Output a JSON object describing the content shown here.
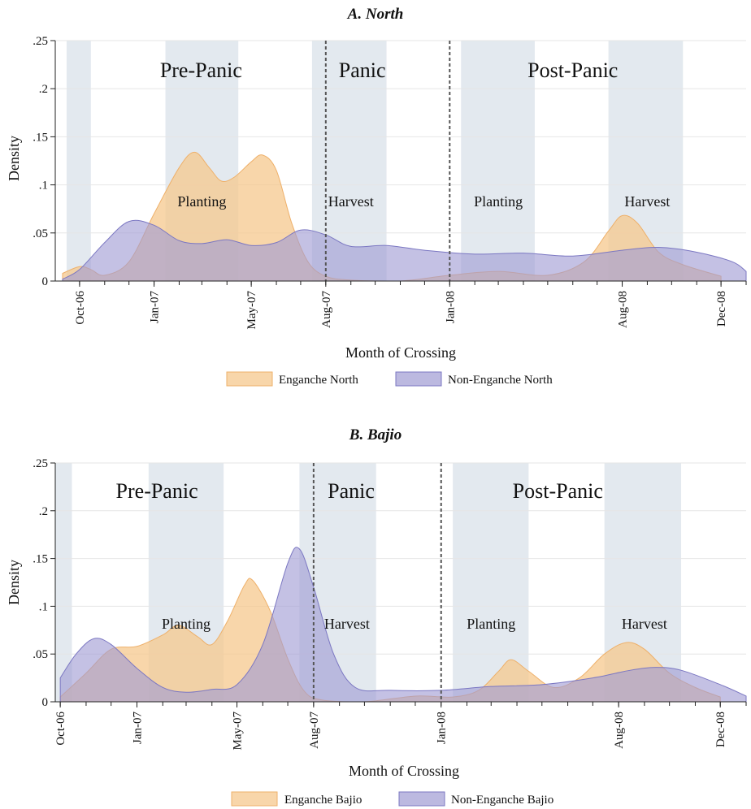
{
  "colors": {
    "enganche_fill": "#f6c88e",
    "enganche_stroke": "#eeb06a",
    "non_enganche_fill": "#9f9bd3",
    "non_enganche_stroke": "#7b77c2",
    "shade": "#d9e2ea",
    "grid": "#e6e6e6"
  },
  "chart_data": [
    {
      "type": "area",
      "title": "A. North",
      "xlabel": "Month of Crossing",
      "ylabel": "Density",
      "xlim": [
        "2006-09-01",
        "2009-01-01"
      ],
      "ylim": [
        0,
        0.25
      ],
      "y_ticks": [
        {
          "value": 0,
          "label": "0"
        },
        {
          "value": 0.05,
          "label": ".05"
        },
        {
          "value": 0.1,
          "label": ".1"
        },
        {
          "value": 0.15,
          "label": ".15"
        },
        {
          "value": 0.2,
          "label": ".2"
        },
        {
          "value": 0.25,
          "label": ".25"
        }
      ],
      "x_ticks": [
        {
          "date": "2006-10-01",
          "label": "Oct-06"
        },
        {
          "date": "2007-01-01",
          "label": "Jan-07"
        },
        {
          "date": "2007-05-01",
          "label": "May-07"
        },
        {
          "date": "2007-08-01",
          "label": "Aug-07"
        },
        {
          "date": "2008-01-01",
          "label": "Jan-08"
        },
        {
          "date": "2008-08-01",
          "label": "Aug-08"
        },
        {
          "date": "2008-12-01",
          "label": "Dec-08"
        }
      ],
      "shaded_bands": [
        {
          "start": "2006-09-15",
          "end": "2006-10-15"
        },
        {
          "start": "2007-01-15",
          "end": "2007-04-15"
        },
        {
          "start": "2007-07-15",
          "end": "2007-10-15"
        },
        {
          "start": "2008-01-15",
          "end": "2008-04-15"
        },
        {
          "start": "2008-07-15",
          "end": "2008-10-15"
        }
      ],
      "vlines": [
        "2007-08-01",
        "2008-01-01"
      ],
      "phase_labels": [
        {
          "text": "Pre-Panic",
          "date": "2007-02-28"
        },
        {
          "text": "Panic",
          "date": "2007-09-15"
        },
        {
          "text": "Post-Panic",
          "date": "2008-06-01"
        }
      ],
      "season_labels": [
        {
          "text": "Planting",
          "date": "2007-03-01"
        },
        {
          "text": "Harvest",
          "date": "2007-09-01"
        },
        {
          "text": "Planting",
          "date": "2008-03-01"
        },
        {
          "text": "Harvest",
          "date": "2008-09-01"
        }
      ],
      "series": [
        {
          "name": "Enganche North",
          "color_key": "enganche",
          "points": [
            [
              "2006-09-10",
              0.008
            ],
            [
              "2006-10-01",
              0.015
            ],
            [
              "2006-10-15",
              0.012
            ],
            [
              "2006-11-01",
              0.006
            ],
            [
              "2006-12-01",
              0.02
            ],
            [
              "2007-01-01",
              0.07
            ],
            [
              "2007-02-01",
              0.118
            ],
            [
              "2007-02-20",
              0.134
            ],
            [
              "2007-03-10",
              0.118
            ],
            [
              "2007-03-25",
              0.104
            ],
            [
              "2007-04-10",
              0.108
            ],
            [
              "2007-05-01",
              0.124
            ],
            [
              "2007-05-15",
              0.131
            ],
            [
              "2007-06-01",
              0.115
            ],
            [
              "2007-06-20",
              0.06
            ],
            [
              "2007-07-10",
              0.02
            ],
            [
              "2007-08-01",
              0.005
            ],
            [
              "2007-09-01",
              0.001
            ],
            [
              "2007-11-01",
              0.0
            ],
            [
              "2008-01-01",
              0.006
            ],
            [
              "2008-03-01",
              0.01
            ],
            [
              "2008-05-01",
              0.006
            ],
            [
              "2008-06-15",
              0.02
            ],
            [
              "2008-07-15",
              0.052
            ],
            [
              "2008-08-01",
              0.068
            ],
            [
              "2008-08-20",
              0.06
            ],
            [
              "2008-09-15",
              0.03
            ],
            [
              "2008-10-15",
              0.017
            ],
            [
              "2008-12-01",
              0.005
            ]
          ]
        },
        {
          "name": "Non-Enganche North",
          "color_key": "non_enganche",
          "points": [
            [
              "2006-09-10",
              0.002
            ],
            [
              "2006-10-01",
              0.012
            ],
            [
              "2006-11-01",
              0.04
            ],
            [
              "2006-12-01",
              0.062
            ],
            [
              "2007-01-01",
              0.058
            ],
            [
              "2007-02-01",
              0.042
            ],
            [
              "2007-03-01",
              0.039
            ],
            [
              "2007-04-01",
              0.043
            ],
            [
              "2007-05-01",
              0.037
            ],
            [
              "2007-06-01",
              0.04
            ],
            [
              "2007-07-01",
              0.053
            ],
            [
              "2007-08-01",
              0.048
            ],
            [
              "2007-09-01",
              0.036
            ],
            [
              "2007-10-15",
              0.037
            ],
            [
              "2007-12-01",
              0.032
            ],
            [
              "2008-02-01",
              0.028
            ],
            [
              "2008-04-01",
              0.029
            ],
            [
              "2008-06-01",
              0.026
            ],
            [
              "2008-08-01",
              0.032
            ],
            [
              "2008-09-15",
              0.035
            ],
            [
              "2008-11-01",
              0.03
            ],
            [
              "2008-12-15",
              0.02
            ],
            [
              "2009-01-01",
              0.01
            ]
          ]
        }
      ],
      "legend": {
        "placement": "bottom",
        "items": [
          "Enganche North",
          "Non-Enganche North"
        ]
      }
    },
    {
      "type": "area",
      "title": "B. Bajio",
      "xlabel": "Month of Crossing",
      "ylabel": "Density",
      "xlim": [
        "2006-09-25",
        "2009-01-01"
      ],
      "ylim": [
        0,
        0.25
      ],
      "y_ticks": [
        {
          "value": 0,
          "label": "0"
        },
        {
          "value": 0.05,
          "label": ".05"
        },
        {
          "value": 0.1,
          "label": ".1"
        },
        {
          "value": 0.15,
          "label": ".15"
        },
        {
          "value": 0.2,
          "label": ".2"
        },
        {
          "value": 0.25,
          "label": ".25"
        }
      ],
      "x_ticks": [
        {
          "date": "2006-10-01",
          "label": "Oct-06"
        },
        {
          "date": "2007-01-01",
          "label": "Jan-07"
        },
        {
          "date": "2007-05-01",
          "label": "May-07"
        },
        {
          "date": "2007-08-01",
          "label": "Aug-07"
        },
        {
          "date": "2008-01-01",
          "label": "Jan-08"
        },
        {
          "date": "2008-08-01",
          "label": "Aug-08"
        },
        {
          "date": "2008-12-01",
          "label": "Dec-08"
        }
      ],
      "shaded_bands": [
        {
          "start": "2006-09-25",
          "end": "2006-10-15"
        },
        {
          "start": "2007-01-15",
          "end": "2007-04-15"
        },
        {
          "start": "2007-07-15",
          "end": "2007-10-15"
        },
        {
          "start": "2008-01-15",
          "end": "2008-04-15"
        },
        {
          "start": "2008-07-15",
          "end": "2008-10-15"
        }
      ],
      "vlines": [
        "2007-08-01",
        "2008-01-01"
      ],
      "phase_labels": [
        {
          "text": "Pre-Panic",
          "date": "2007-01-25"
        },
        {
          "text": "Panic",
          "date": "2007-09-15"
        },
        {
          "text": "Post-Panic",
          "date": "2008-05-20"
        }
      ],
      "season_labels": [
        {
          "text": "Planting",
          "date": "2007-03-01"
        },
        {
          "text": "Harvest",
          "date": "2007-09-10"
        },
        {
          "text": "Planting",
          "date": "2008-03-01"
        },
        {
          "text": "Harvest",
          "date": "2008-09-01"
        }
      ],
      "series": [
        {
          "name": "Enganche Bajio",
          "color_key": "enganche",
          "points": [
            [
              "2006-10-01",
              0.005
            ],
            [
              "2006-11-01",
              0.03
            ],
            [
              "2006-12-01",
              0.055
            ],
            [
              "2007-01-01",
              0.058
            ],
            [
              "2007-02-01",
              0.07
            ],
            [
              "2007-02-20",
              0.08
            ],
            [
              "2007-03-15",
              0.068
            ],
            [
              "2007-04-01",
              0.06
            ],
            [
              "2007-04-20",
              0.085
            ],
            [
              "2007-05-10",
              0.122
            ],
            [
              "2007-05-20",
              0.127
            ],
            [
              "2007-06-10",
              0.095
            ],
            [
              "2007-07-01",
              0.045
            ],
            [
              "2007-07-20",
              0.012
            ],
            [
              "2007-08-10",
              0.002
            ],
            [
              "2007-10-01",
              0.0
            ],
            [
              "2007-12-01",
              0.006
            ],
            [
              "2008-01-15",
              0.005
            ],
            [
              "2008-02-15",
              0.012
            ],
            [
              "2008-03-10",
              0.032
            ],
            [
              "2008-03-25",
              0.044
            ],
            [
              "2008-04-15",
              0.032
            ],
            [
              "2008-05-15",
              0.015
            ],
            [
              "2008-06-15",
              0.025
            ],
            [
              "2008-07-15",
              0.05
            ],
            [
              "2008-08-10",
              0.062
            ],
            [
              "2008-09-01",
              0.055
            ],
            [
              "2008-10-01",
              0.03
            ],
            [
              "2008-11-01",
              0.015
            ],
            [
              "2008-12-01",
              0.005
            ]
          ]
        },
        {
          "name": "Non-Enganche Bajio",
          "color_key": "non_enganche",
          "points": [
            [
              "2006-10-01",
              0.025
            ],
            [
              "2006-10-20",
              0.05
            ],
            [
              "2006-11-10",
              0.066
            ],
            [
              "2006-12-01",
              0.06
            ],
            [
              "2007-01-01",
              0.035
            ],
            [
              "2007-02-01",
              0.015
            ],
            [
              "2007-03-01",
              0.01
            ],
            [
              "2007-04-01",
              0.013
            ],
            [
              "2007-05-01",
              0.018
            ],
            [
              "2007-06-01",
              0.06
            ],
            [
              "2007-07-01",
              0.145
            ],
            [
              "2007-07-15",
              0.16
            ],
            [
              "2007-08-01",
              0.12
            ],
            [
              "2007-08-25",
              0.05
            ],
            [
              "2007-09-20",
              0.015
            ],
            [
              "2007-11-01",
              0.012
            ],
            [
              "2008-01-01",
              0.012
            ],
            [
              "2008-03-01",
              0.016
            ],
            [
              "2008-05-01",
              0.018
            ],
            [
              "2008-07-01",
              0.025
            ],
            [
              "2008-08-15",
              0.033
            ],
            [
              "2008-09-15",
              0.036
            ],
            [
              "2008-10-15",
              0.033
            ],
            [
              "2008-12-01",
              0.018
            ],
            [
              "2009-01-01",
              0.006
            ]
          ]
        }
      ],
      "legend": {
        "placement": "bottom",
        "items": [
          "Enganche Bajio",
          "Non-Enganche Bajio"
        ]
      }
    }
  ]
}
